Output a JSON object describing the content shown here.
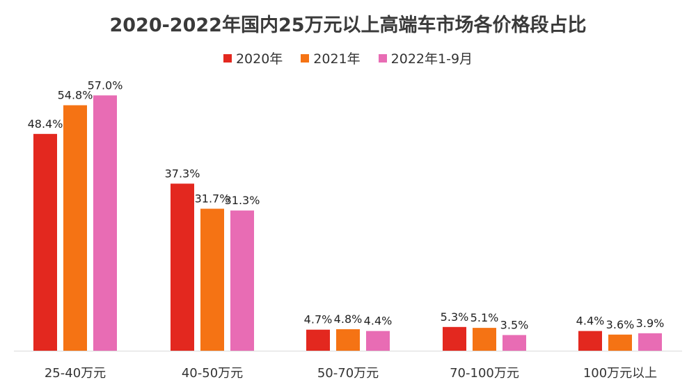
{
  "chart_data": {
    "type": "bar",
    "title": "2020-2022年国内25万元以上高端车市场各价格段占比",
    "categories": [
      "25-40万元",
      "40-50万元",
      "50-70万元",
      "70-100万元",
      "100万元以上"
    ],
    "series": [
      {
        "name": "2020年",
        "color": "#e3281f",
        "values": [
          48.4,
          37.3,
          4.7,
          5.3,
          4.4
        ],
        "labels": [
          "48.4%",
          "37.3%",
          "4.7%",
          "5.3%",
          "4.4%"
        ]
      },
      {
        "name": "2021年",
        "color": "#f57314",
        "values": [
          54.8,
          31.7,
          4.8,
          5.1,
          3.6
        ],
        "labels": [
          "54.8%",
          "31.7%",
          "4.8%",
          "5.1%",
          "3.6%"
        ]
      },
      {
        "name": "2022年1-9月",
        "color": "#e86cb4",
        "values": [
          57.0,
          31.3,
          4.4,
          3.5,
          3.9
        ],
        "labels": [
          "57.0%",
          "31.3%",
          "4.4%",
          "3.5%",
          "3.9%"
        ]
      }
    ],
    "ylim": [
      0,
      60
    ],
    "legend_position": "top",
    "grid": false
  }
}
